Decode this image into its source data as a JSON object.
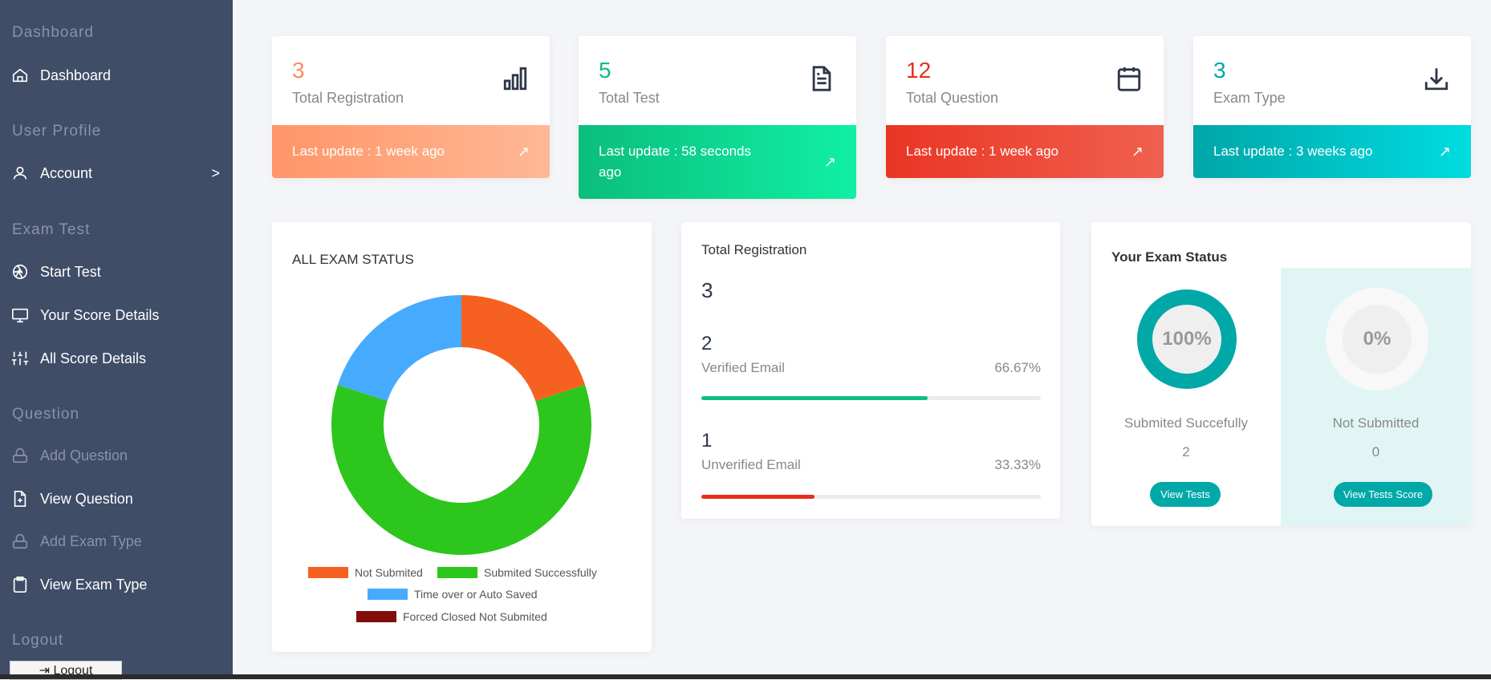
{
  "sidebar": {
    "sections": [
      "Dashboard",
      "User Profile",
      "Exam Test",
      "Question",
      "Logout"
    ],
    "items": [
      {
        "label": "Dashboard",
        "icon": "home-icon"
      },
      {
        "label": "Account",
        "icon": "user-icon"
      },
      {
        "label": "Start Test",
        "icon": "aperture-icon"
      },
      {
        "label": "Your Score Details",
        "icon": "monitor-icon"
      },
      {
        "label": "All Score Details",
        "icon": "sliders-icon"
      },
      {
        "label": "Add Question",
        "icon": "lock-icon",
        "disabled": true
      },
      {
        "label": "View Question",
        "icon": "file-plus-icon"
      },
      {
        "label": "Add Exam Type",
        "icon": "lock-icon",
        "disabled": true
      },
      {
        "label": "View Exam Type",
        "icon": "clipboard-icon"
      }
    ],
    "account_chevron": ">",
    "logout_button": "⇥ Logout"
  },
  "stats": [
    {
      "value": "3",
      "label": "Total Registration",
      "footer": "Last update : 1 week ago",
      "color": "#ff8a5c",
      "icon": "bar-chart-icon"
    },
    {
      "value": "5",
      "label": "Total Test",
      "footer": "Last update : 58 seconds ago",
      "color": "#0fbc7e",
      "icon": "file-text-icon"
    },
    {
      "value": "12",
      "label": "Total Question",
      "footer": "Last update : 1 week ago",
      "color": "#ea2c1c",
      "icon": "calendar-icon"
    },
    {
      "value": "3",
      "label": "Exam Type",
      "footer": "Last update : 3 weeks ago",
      "color": "#00a8a8",
      "icon": "download-icon"
    }
  ],
  "trend_glyph": "↗",
  "chart_data": {
    "type": "pie",
    "title": "ALL EXAM STATUS",
    "categories": [
      "Not Submited",
      "Submited Successfully",
      "Time over or Auto Saved",
      "Forced Closed Not Submited"
    ],
    "values": [
      1,
      3,
      1,
      0
    ],
    "colors": [
      "#f66121",
      "#2dc61d",
      "#46aaff",
      "#820c0c"
    ],
    "legend": "bottom"
  },
  "registration": {
    "title": "Total Registration",
    "total": "3",
    "rows": [
      {
        "count": "2",
        "label": "Verified Email",
        "percent": "66.67%",
        "fill": 66.67,
        "color": "#0fc07f"
      },
      {
        "count": "1",
        "label": "Unverified Email",
        "percent": "33.33%",
        "fill": 33.33,
        "color": "#ea2c1c"
      }
    ]
  },
  "exam_status": {
    "title": "Your Exam Status",
    "submitted": {
      "percent": "100%",
      "label": "Submited Succefully",
      "count": "2",
      "button": "View Tests"
    },
    "not_submitted": {
      "percent": "0%",
      "label": "Not Submitted",
      "count": "0",
      "button": "View Tests Score"
    }
  }
}
